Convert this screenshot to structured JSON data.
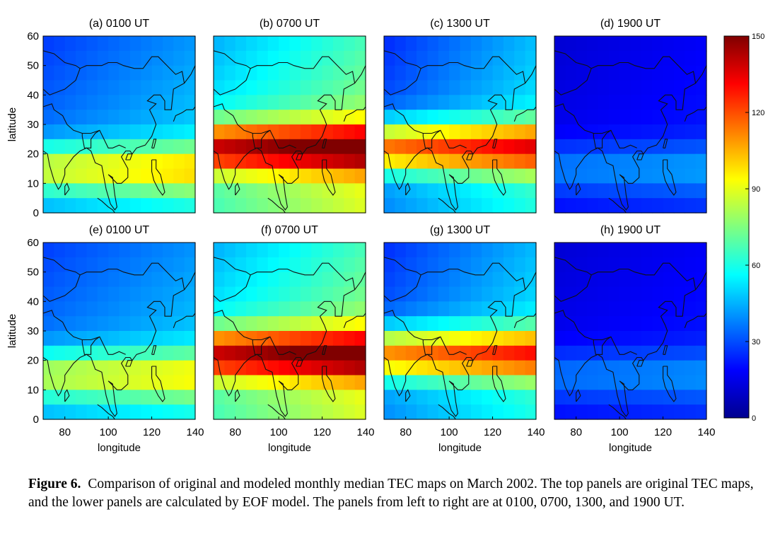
{
  "chart_data": {
    "type": "heatmap",
    "panels": [
      {
        "label": "(a) 0100 UT",
        "row": "original",
        "ut": "0100",
        "peak_tec": 95,
        "peak_lat": 15,
        "base_tec": 45
      },
      {
        "label": "(b) 0700 UT",
        "row": "original",
        "ut": "0700",
        "peak_tec": 150,
        "peak_lat": 22,
        "base_tec": 70
      },
      {
        "label": "(c) 1300 UT",
        "row": "original",
        "ut": "1300",
        "peak_tec": 125,
        "peak_lat": 22,
        "base_tec": 45
      },
      {
        "label": "(d) 1900 UT",
        "row": "original",
        "ut": "1900",
        "peak_tec": 40,
        "peak_lat": 15,
        "base_tec": 20
      },
      {
        "label": "(e) 0100 UT",
        "row": "modeled",
        "ut": "0100",
        "peak_tec": 90,
        "peak_lat": 15,
        "base_tec": 45
      },
      {
        "label": "(f) 0700 UT",
        "row": "modeled",
        "ut": "0700",
        "peak_tec": 150,
        "peak_lat": 22,
        "base_tec": 70
      },
      {
        "label": "(g) 1300 UT",
        "row": "modeled",
        "ut": "1300",
        "peak_tec": 120,
        "peak_lat": 22,
        "base_tec": 45
      },
      {
        "label": "(h) 1900 UT",
        "row": "modeled",
        "ut": "1900",
        "peak_tec": 38,
        "peak_lat": 15,
        "base_tec": 20
      }
    ],
    "xlabel": "longitude",
    "ylabel": "latitude",
    "xlim": [
      70,
      140
    ],
    "ylim": [
      0,
      60
    ],
    "xticks": [
      80,
      100,
      120,
      140
    ],
    "yticks": [
      0,
      10,
      20,
      30,
      40,
      50,
      60
    ],
    "colorbar": {
      "min": 0,
      "max": 150,
      "ticks": [
        0,
        30,
        60,
        90,
        120,
        150
      ],
      "colormap": "jet"
    }
  },
  "caption": {
    "label": "Figure 6.",
    "text": "Comparison of original and modeled monthly median TEC maps on March 2002. The top panels are original TEC maps, and the lower panels are calculated by EOF model. The panels from left to right are at 0100, 0700, 1300, and 1900 UT."
  }
}
